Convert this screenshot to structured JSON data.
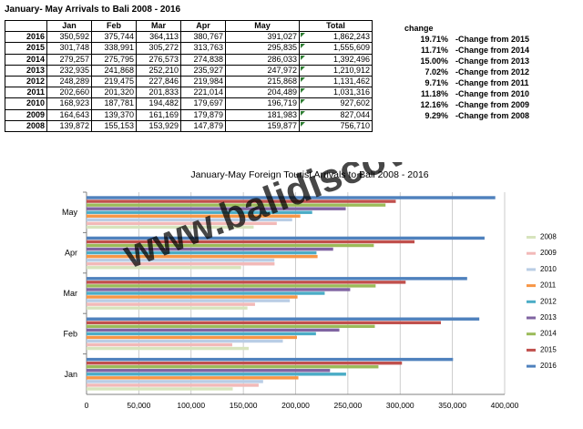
{
  "table": {
    "title": "January- May Arrivals to Bali 2008 - 2016",
    "columns": [
      "Jan",
      "Feb",
      "Mar",
      "Apr",
      "May",
      "Total"
    ],
    "rows": [
      {
        "year": "2016",
        "values": [
          "350,592",
          "375,744",
          "364,113",
          "380,767",
          "391,027"
        ],
        "total": "1,862,243"
      },
      {
        "year": "2015",
        "values": [
          "301,748",
          "338,991",
          "305,272",
          "313,763",
          "295,835"
        ],
        "total": "1,555,609"
      },
      {
        "year": "2014",
        "values": [
          "279,257",
          "275,795",
          "276,573",
          "274,838",
          "286,033"
        ],
        "total": "1,392,496"
      },
      {
        "year": "2013",
        "values": [
          "232,935",
          "241,868",
          "252,210",
          "235,927",
          "247,972"
        ],
        "total": "1,210,912"
      },
      {
        "year": "2012",
        "values": [
          "248,289",
          "219,475",
          "227,846",
          "219,984",
          "215,868"
        ],
        "total": "1,131,462"
      },
      {
        "year": "2011",
        "values": [
          "202,660",
          "201,320",
          "201,833",
          "221,014",
          "204,489"
        ],
        "total": "1,031,316"
      },
      {
        "year": "2010",
        "values": [
          "168,923",
          "187,781",
          "194,482",
          "179,697",
          "196,719"
        ],
        "total": "927,602"
      },
      {
        "year": "2009",
        "values": [
          "164,643",
          "139,370",
          "161,169",
          "179,879",
          "181,983"
        ],
        "total": "827,044"
      },
      {
        "year": "2008",
        "values": [
          "139,872",
          "155,153",
          "153,929",
          "147,879",
          "159,877"
        ],
        "total": "756,710"
      }
    ]
  },
  "change": {
    "header": "change",
    "rows": [
      {
        "pct": "19.71%",
        "label": "-Change from 2015"
      },
      {
        "pct": "11.71%",
        "label": "-Change from 2014"
      },
      {
        "pct": "15.00%",
        "label": "-Change from 2013"
      },
      {
        "pct": "7.02%",
        "label": "-Change from 2012"
      },
      {
        "pct": "9.71%",
        "label": "-Change from 2011"
      },
      {
        "pct": "11.18%",
        "label": "-Change from 2010"
      },
      {
        "pct": "12.16%",
        "label": "-Change from 2009"
      },
      {
        "pct": "9.29%",
        "label": "-Change from 2008"
      }
    ]
  },
  "watermark": {
    "line1": "www.balidiscovery.com",
    "line2": "www.balidiscovery.com"
  },
  "chart_data": {
    "type": "bar",
    "orientation": "horizontal",
    "title": "January-May Foreign Tourist Arrivals to Bali 2008  - 2016",
    "xlabel": "",
    "ylabel": "",
    "categories": [
      "Jan",
      "Feb",
      "Mar",
      "Apr",
      "May"
    ],
    "xlim": [
      0,
      400000
    ],
    "xticks": [
      0,
      50000,
      100000,
      150000,
      200000,
      250000,
      300000,
      350000,
      400000
    ],
    "xtick_labels": [
      "0",
      "50,000",
      "100,000",
      "150,000",
      "200,000",
      "250,000",
      "300,000",
      "350,000",
      "400,000"
    ],
    "grid": "vertical",
    "legend_position": "right",
    "series": [
      {
        "name": "2008",
        "color": "#d7e4bd",
        "values": [
          139872,
          155153,
          153929,
          147879,
          159877
        ]
      },
      {
        "name": "2009",
        "color": "#f2b9b8",
        "values": [
          164643,
          139370,
          161169,
          179879,
          181983
        ]
      },
      {
        "name": "2010",
        "color": "#b9cde5",
        "values": [
          168923,
          187781,
          194482,
          179697,
          196719
        ]
      },
      {
        "name": "2011",
        "color": "#f79646",
        "values": [
          202660,
          201320,
          201833,
          221014,
          204489
        ]
      },
      {
        "name": "2012",
        "color": "#4bacc6",
        "values": [
          248289,
          219475,
          227846,
          219984,
          215868
        ]
      },
      {
        "name": "2013",
        "color": "#8064a2",
        "values": [
          232935,
          241868,
          252210,
          235927,
          247972
        ]
      },
      {
        "name": "2014",
        "color": "#9bbb59",
        "values": [
          279257,
          275795,
          276573,
          274838,
          286033
        ]
      },
      {
        "name": "2015",
        "color": "#c0504d",
        "values": [
          301748,
          338991,
          305272,
          313763,
          295835
        ]
      },
      {
        "name": "2016",
        "color": "#4f81bd",
        "values": [
          350592,
          375744,
          364113,
          380767,
          391027
        ]
      }
    ]
  }
}
